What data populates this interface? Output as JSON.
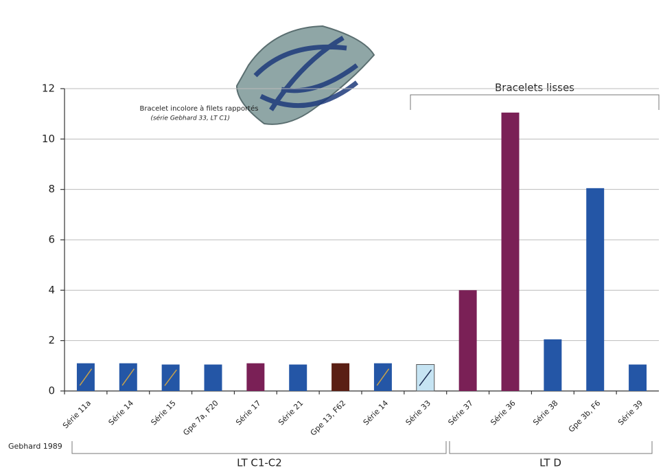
{
  "chart_data": {
    "type": "bar",
    "categories": [
      "Série 11a",
      "Série 14",
      "Série 15",
      "Gpe 7a, F20",
      "Série 17",
      "Série 21",
      "Gpe 13, F62",
      "Série 14",
      "Série 33",
      "Série 37",
      "Série 36",
      "Série 38",
      "Gpe 3b, F6",
      "Série 39"
    ],
    "values": [
      1.1,
      1.1,
      1.05,
      1.05,
      1.1,
      1.05,
      1.1,
      1.1,
      1.05,
      4,
      11.05,
      2.05,
      8.05,
      1.05
    ],
    "colors": [
      "#2456a6",
      "#2456a6",
      "#2456a6",
      "#2456a6",
      "#7a2056",
      "#2456a6",
      "#5a1f14",
      "#2456a6",
      "#c6e4f3",
      "#7a2056",
      "#7a2056",
      "#2456a6",
      "#2456a6",
      "#2456a6"
    ],
    "stripe_colors": [
      "#c9a24a",
      "#c9a24a",
      "#c9a24a",
      null,
      null,
      null,
      null,
      "#c9a24a",
      "#1a2a50",
      null,
      null,
      null,
      null,
      null
    ],
    "ylim": [
      0,
      12
    ],
    "yticks": [
      0,
      2,
      4,
      6,
      8,
      10,
      12
    ],
    "grid": true,
    "annotations": {
      "caption": "Bracelet incolore à filets rapportés",
      "caption_source": "(série Gebhard 33, LT C1)",
      "group": "Bracelets lisses",
      "reference": "Gebhard 1989",
      "period_1": "LT C1-C2",
      "period_2": "LT D"
    }
  }
}
